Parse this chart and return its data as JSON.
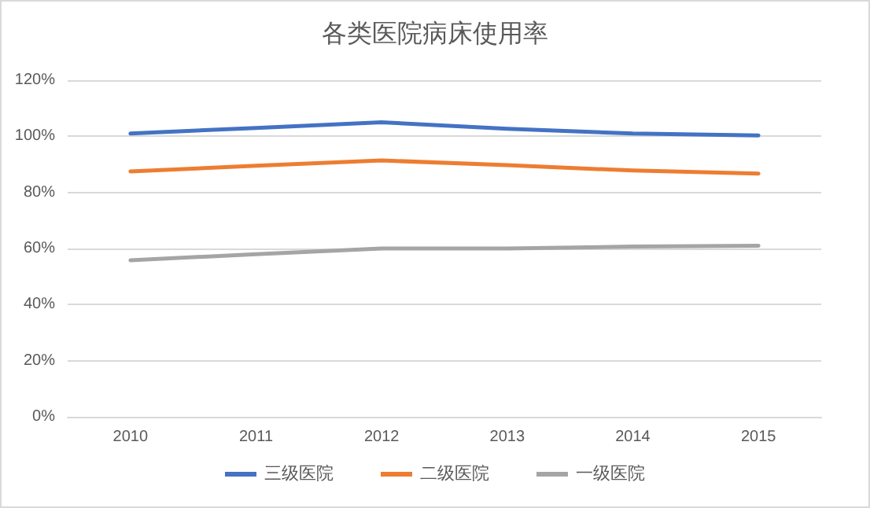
{
  "chart_data": {
    "type": "line",
    "title": "各类医院病床使用率",
    "categories": [
      "2010",
      "2011",
      "2012",
      "2013",
      "2014",
      "2015"
    ],
    "series": [
      {
        "name": "三级医院",
        "color": "#4472c4",
        "values": [
          101,
          103,
          105,
          102.7,
          101,
          100.3
        ]
      },
      {
        "name": "二级医院",
        "color": "#ed7d31",
        "values": [
          87.5,
          89.5,
          91.4,
          89.7,
          87.8,
          86.7
        ]
      },
      {
        "name": "一级医院",
        "color": "#a5a5a5",
        "values": [
          55.8,
          58,
          60,
          60,
          60.7,
          61
        ]
      }
    ],
    "ylim": [
      0,
      120
    ],
    "yticks": [
      {
        "value": 0,
        "label": "0%"
      },
      {
        "value": 20,
        "label": "20%"
      },
      {
        "value": 40,
        "label": "40%"
      },
      {
        "value": 60,
        "label": "60%"
      },
      {
        "value": 80,
        "label": "80%"
      },
      {
        "value": 100,
        "label": "100%"
      },
      {
        "value": 120,
        "label": "120%"
      }
    ],
    "grid": "y",
    "legend": "bottom",
    "marker": "none",
    "line_style": "solid"
  }
}
